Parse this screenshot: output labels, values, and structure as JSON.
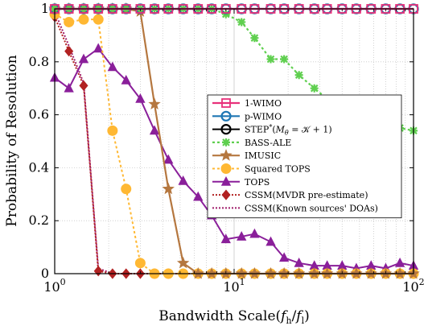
{
  "chart_data": {
    "type": "line",
    "xscale": "log",
    "xlabel": "Bandwidth Scale(f_h/f_l)",
    "ylabel": "Probability of Resolution",
    "xlim": [
      1,
      100
    ],
    "ylim": [
      0,
      1
    ],
    "xticks": [
      {
        "value": 1,
        "base": "10",
        "exp": "0"
      },
      {
        "value": 10,
        "base": "10",
        "exp": "1"
      },
      {
        "value": 100,
        "base": "10",
        "exp": "2"
      }
    ],
    "yticks": [
      {
        "value": 0,
        "label": "0"
      },
      {
        "value": 0.2,
        "label": "0.2"
      },
      {
        "value": 0.4,
        "label": "0.4"
      },
      {
        "value": 0.6,
        "label": "0.6"
      },
      {
        "value": 0.8,
        "label": "0.8"
      },
      {
        "value": 1,
        "label": "1"
      }
    ],
    "grid": true,
    "legend_position": "center-right",
    "series": [
      {
        "name": "1-WIMO",
        "key": "wimo1",
        "color": "#e8317a",
        "dash": "none",
        "width": 2.2,
        "marker": "square",
        "x": [
          1,
          1.2,
          1.45,
          1.75,
          2.1,
          2.5,
          3,
          3.6,
          4.3,
          5.2,
          6.3,
          7.5,
          9,
          11,
          13,
          16,
          19,
          23,
          28,
          33,
          40,
          48,
          58,
          70,
          84,
          100
        ],
        "y": [
          1,
          1,
          1,
          1,
          1,
          1,
          1,
          1,
          1,
          1,
          1,
          1,
          1,
          1,
          1,
          1,
          1,
          1,
          1,
          1,
          1,
          1,
          1,
          1,
          1,
          1
        ]
      },
      {
        "name": "p-WIMO",
        "key": "pwimo",
        "color": "#1f77b4",
        "dash": "none",
        "width": 2.2,
        "marker": "circle",
        "x": [
          1,
          1.2,
          1.45,
          1.75,
          2.1,
          2.5,
          3,
          3.6,
          4.3,
          5.2,
          6.3,
          7.5,
          9,
          11,
          13,
          16,
          19,
          23,
          28,
          33,
          40,
          48,
          58,
          70,
          84,
          100
        ],
        "y": [
          1,
          1,
          1,
          1,
          1,
          1,
          1,
          1,
          1,
          1,
          1,
          1,
          1,
          1,
          1,
          1,
          1,
          1,
          1,
          1,
          1,
          1,
          1,
          1,
          1,
          1
        ]
      },
      {
        "name": "STEP^*(M_θ = 𝒦 + 1)",
        "key": "step",
        "color": "#000000",
        "dash": "none",
        "width": 2,
        "marker": "circle",
        "x": [
          1,
          1.2,
          1.45,
          1.75,
          2.1,
          2.5,
          3,
          3.6,
          4.3,
          5.2,
          6.3,
          7.5,
          9,
          11,
          13,
          16,
          19,
          23,
          28,
          33,
          40,
          48,
          58,
          70,
          84,
          100
        ],
        "y": [
          1,
          1,
          1,
          1,
          1,
          1,
          1,
          1,
          1,
          1,
          1,
          1,
          1,
          1,
          1,
          1,
          1,
          1,
          1,
          1,
          1,
          1,
          1,
          1,
          1,
          1
        ]
      },
      {
        "name": "BASS-ALE",
        "key": "bass",
        "color": "#5fcf4f",
        "dash": "3,3",
        "width": 2.2,
        "marker": "asterisk",
        "x": [
          1,
          1.2,
          1.45,
          1.75,
          2.1,
          2.5,
          3,
          3.6,
          4.3,
          5.2,
          6.3,
          7.5,
          9,
          11,
          13,
          16,
          19,
          23,
          28,
          33,
          40,
          48,
          58,
          70,
          84,
          100
        ],
        "y": [
          1,
          1,
          1,
          1,
          1,
          1,
          1,
          1,
          1,
          1,
          1,
          1,
          0.98,
          0.95,
          0.89,
          0.81,
          0.81,
          0.75,
          0.7,
          0.66,
          0.64,
          0.61,
          0.58,
          0.57,
          0.55,
          0.54
        ]
      },
      {
        "name": "IMUSIC",
        "key": "imusic",
        "color": "#b5773f",
        "dash": "none",
        "width": 2.2,
        "marker": "star",
        "x": [
          1,
          1.2,
          1.45,
          1.75,
          2.1,
          2.5,
          3,
          3.6,
          4.3,
          5.2,
          6.3,
          7.5,
          9,
          11,
          13,
          16,
          19,
          23,
          28,
          33,
          40,
          48,
          58,
          70,
          84,
          100
        ],
        "y": [
          1,
          1,
          1,
          1,
          1,
          1,
          0.99,
          0.64,
          0.32,
          0.04,
          0,
          0,
          0,
          0,
          0,
          0,
          0,
          0,
          0,
          0,
          0,
          0,
          0,
          0,
          0,
          0
        ]
      },
      {
        "name": "Squared TOPS",
        "key": "sqtops",
        "color": "#ffb833",
        "dash": "3,3",
        "width": 2,
        "marker": "circle-filled",
        "x": [
          1,
          1.2,
          1.45,
          1.75,
          2.1,
          2.5,
          3,
          3.6,
          4.3,
          5.2,
          6.3,
          7.5,
          9,
          11,
          13,
          16,
          19,
          23,
          28,
          33,
          40,
          48,
          58,
          70,
          84,
          100
        ],
        "y": [
          0.98,
          0.95,
          0.96,
          0.96,
          0.54,
          0.32,
          0.04,
          0,
          0,
          0,
          0,
          0,
          0,
          0,
          0,
          0,
          0,
          0,
          0,
          0,
          0,
          0,
          0,
          0,
          0,
          0
        ]
      },
      {
        "name": "TOPS",
        "key": "tops",
        "color": "#8a1f9a",
        "dash": "none",
        "width": 2,
        "marker": "triangle",
        "x": [
          1,
          1.2,
          1.45,
          1.75,
          2.1,
          2.5,
          3,
          3.6,
          4.3,
          5.2,
          6.3,
          7.5,
          9,
          11,
          13,
          16,
          19,
          23,
          28,
          33,
          40,
          48,
          58,
          70,
          84,
          100
        ],
        "y": [
          0.74,
          0.7,
          0.81,
          0.85,
          0.78,
          0.73,
          0.66,
          0.54,
          0.43,
          0.35,
          0.29,
          0.22,
          0.13,
          0.14,
          0.15,
          0.12,
          0.06,
          0.04,
          0.03,
          0.03,
          0.03,
          0.02,
          0.03,
          0.02,
          0.04,
          0.03
        ]
      },
      {
        "name": "CSSM(MVDR pre-estimate)",
        "key": "cssm_mvdr",
        "color": "#b22222",
        "dash": "2,2",
        "width": 2,
        "marker": "diamond",
        "x": [
          1,
          1.2,
          1.45,
          1.75,
          2.1,
          2.5,
          3,
          3.6,
          4.3,
          5.2,
          6.3,
          7.5,
          9,
          11,
          13,
          16,
          19,
          23,
          28,
          33,
          40,
          48,
          58,
          70,
          84,
          100
        ],
        "y": [
          0.97,
          0.84,
          0.71,
          0.01,
          0,
          0,
          0,
          0,
          0,
          0,
          0,
          0,
          0,
          0,
          0,
          0,
          0,
          0,
          0,
          0,
          0,
          0,
          0,
          0,
          0,
          0
        ]
      },
      {
        "name": "CSSM(Known sources' DOAs)",
        "key": "cssm_known",
        "color": "#a01c6a",
        "dash": "2,2",
        "width": 2,
        "marker": "none",
        "x": [
          1,
          1.2,
          1.45,
          1.75,
          2.1,
          2.5,
          3,
          3.6,
          4.3,
          5.2,
          6.3,
          7.5,
          9,
          11,
          13,
          16,
          19,
          23,
          28,
          33,
          40,
          48,
          58,
          70,
          84,
          100
        ],
        "y": [
          0.99,
          0.86,
          0.72,
          0.02,
          0,
          0,
          0,
          0,
          0,
          0,
          0,
          0,
          0,
          0,
          0,
          0,
          0,
          0,
          0,
          0,
          0,
          0,
          0,
          0,
          0,
          0
        ]
      }
    ]
  }
}
